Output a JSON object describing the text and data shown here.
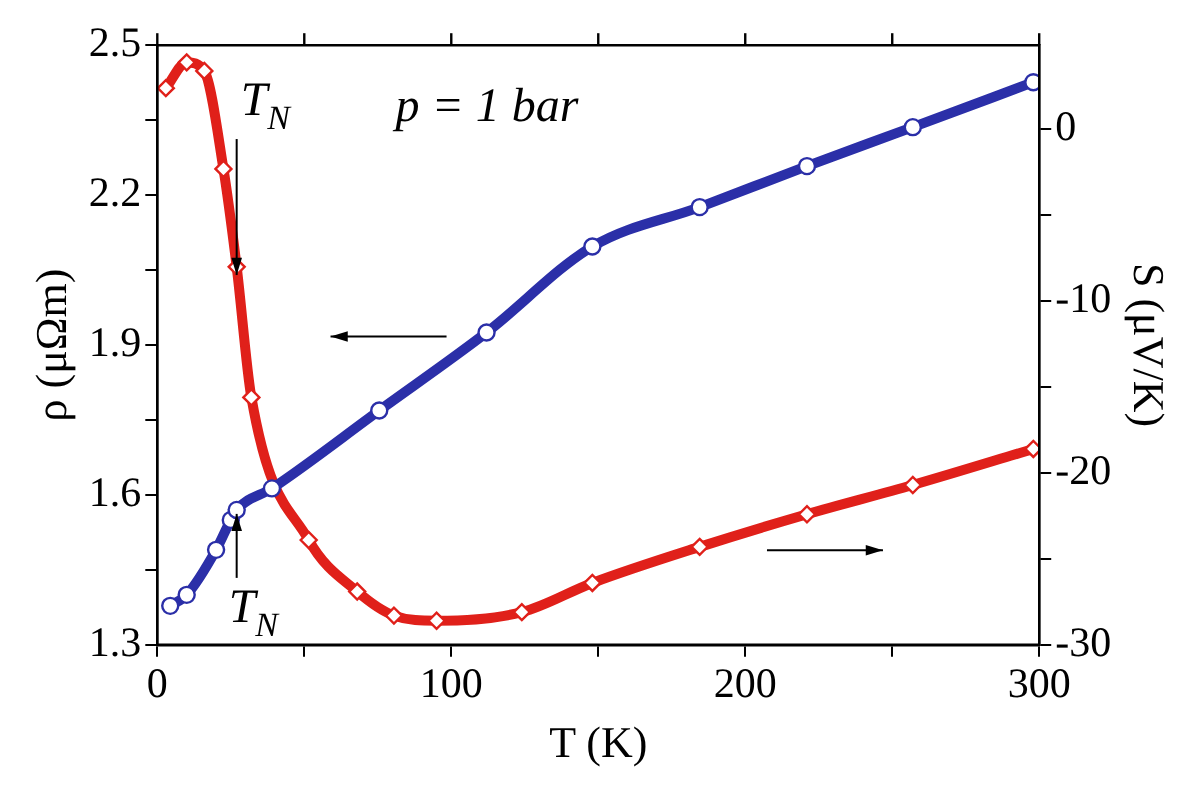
{
  "chart_data": {
    "type": "line",
    "xlabel": "T (K)",
    "ylabel": "ρ (μΩm)",
    "y2label": "S (μV/K)",
    "xlim": [
      0,
      300
    ],
    "xticks": [
      0,
      {
        "value": 50,
        "label": null
      },
      100,
      {
        "value": 150,
        "label": null
      },
      200,
      {
        "value": 250,
        "label": null
      },
      300
    ],
    "ylim": [
      1.3,
      2.5
    ],
    "yticks": [
      1.3,
      {
        "value": 1.45,
        "label": null
      },
      1.6,
      {
        "value": 1.75,
        "label": null
      },
      1.9,
      {
        "value": 2.05,
        "label": null
      },
      2.2,
      {
        "value": 2.35,
        "label": null
      },
      2.5
    ],
    "y2lim": [
      -30,
      4.9
    ],
    "y2ticks": [
      -30,
      {
        "value": -25,
        "label": null
      },
      -20,
      {
        "value": -15,
        "label": null
      },
      -10,
      {
        "value": -5,
        "label": null
      },
      0
    ],
    "grid": false,
    "legend": false,
    "series": [
      {
        "color": "#2b2fa8",
        "marker": "circle",
        "x": [
          4.4,
          10,
          20,
          25,
          27,
          39,
          75.5,
          112,
          148,
          184.5,
          221,
          257,
          298
        ],
        "values": [
          1.378,
          1.4,
          1.49,
          1.55,
          1.57,
          1.613,
          1.769,
          1.925,
          2.097,
          2.176,
          2.258,
          2.336,
          2.426
        ]
      },
      {
        "color": "#e0201a",
        "marker": "diamond",
        "axis": "y2",
        "x": [
          2.9,
          10,
          16,
          22.5,
          27,
          32,
          51.5,
          68,
          80.5,
          95,
          124,
          148,
          184.5,
          221,
          257,
          298
        ],
        "values": [
          2.4,
          3.9,
          3.4,
          -2.3,
          -8.0,
          -15.6,
          -23.9,
          -26.9,
          -28.3,
          -28.6,
          -28.1,
          -26.4,
          -24.3,
          -22.4,
          -20.7,
          -18.6
        ]
      }
    ],
    "annotations": [
      {
        "text": "T$_{N}$",
        "x": 27,
        "y": 2.04
      },
      {
        "text": "T$_{N}$",
        "x": 27,
        "y": 1.57
      },
      "p = 1 bar"
    ]
  }
}
